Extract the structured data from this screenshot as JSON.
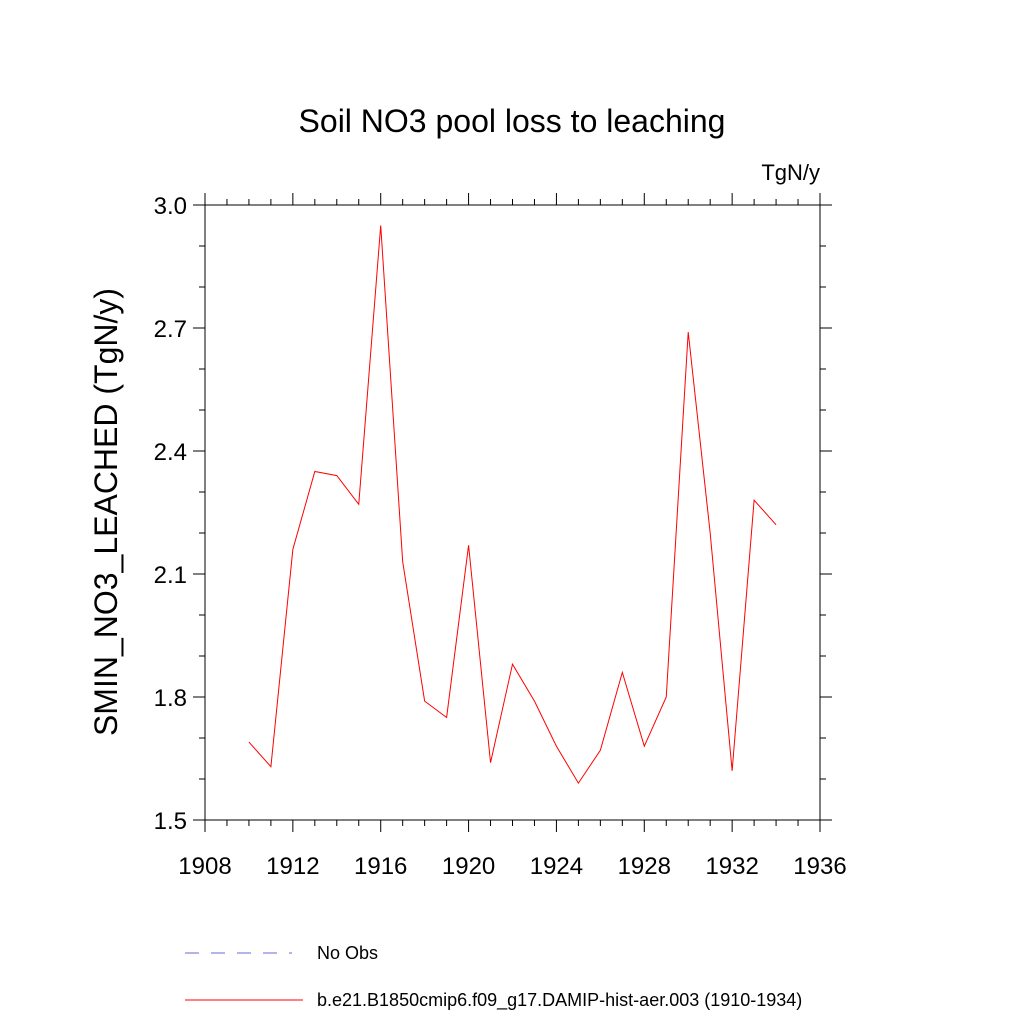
{
  "chart_data": {
    "type": "line",
    "title": "Soil NO3 pool loss to leaching",
    "units_label": "TgN/y",
    "xlabel": "",
    "ylabel": "SMIN_NO3_LEACHED  (TgN/y)",
    "xlim": [
      1908,
      1936
    ],
    "ylim": [
      1.5,
      3.0
    ],
    "x_ticks": [
      1908,
      1912,
      1916,
      1920,
      1924,
      1928,
      1932,
      1936
    ],
    "x_tick_labels": [
      "1908",
      "1912",
      "1916",
      "1920",
      "1924",
      "1928",
      "1932",
      "1936"
    ],
    "y_ticks": [
      1.5,
      1.8,
      2.1,
      2.4,
      2.7,
      3.0
    ],
    "y_tick_labels": [
      "1.5",
      "1.8",
      "2.1",
      "2.4",
      "2.7",
      "3.0"
    ],
    "grid": false,
    "legend_position": "bottom",
    "series": [
      {
        "name": "No Obs",
        "color": "#6a6ad8",
        "style": "dashed",
        "x": [],
        "y": []
      },
      {
        "name": "b.e21.B1850cmip6.f09_g17.DAMIP-hist-aer.003 (1910-1934)",
        "color": "#ff0000",
        "style": "solid",
        "x": [
          1910,
          1911,
          1912,
          1913,
          1914,
          1915,
          1916,
          1917,
          1918,
          1919,
          1920,
          1921,
          1922,
          1923,
          1924,
          1925,
          1926,
          1927,
          1928,
          1929,
          1930,
          1931,
          1932,
          1933,
          1934
        ],
        "y": [
          1.69,
          1.63,
          2.16,
          2.35,
          2.34,
          2.27,
          2.95,
          2.13,
          1.79,
          1.75,
          2.17,
          1.64,
          1.88,
          1.79,
          1.68,
          1.59,
          1.67,
          1.86,
          1.68,
          1.8,
          2.69,
          2.2,
          1.62,
          2.28,
          2.22
        ]
      }
    ]
  }
}
